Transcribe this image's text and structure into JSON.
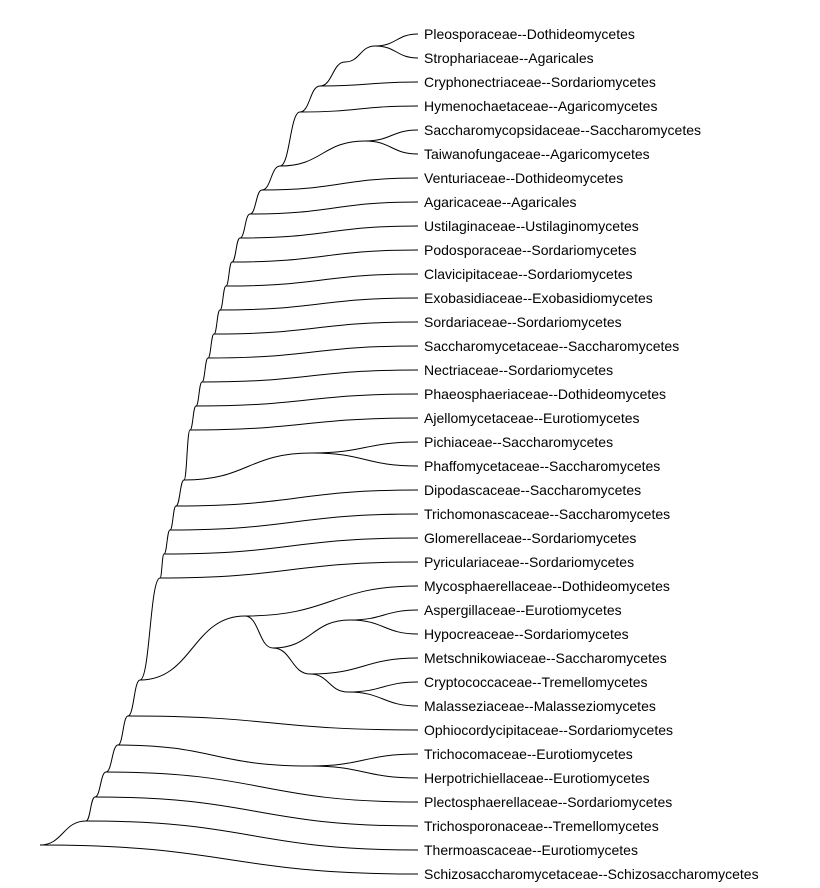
{
  "tree": {
    "leaves": [
      "Pleosporaceae--Dothideomycetes",
      "Strophariaceae--Agaricales",
      "Cryphonectriaceae--Sordariomycetes",
      "Hymenochaetaceae--Agaricomycetes",
      "Saccharomycopsidaceae--Saccharomycetes",
      "Taiwanofungaceae--Agaricomycetes",
      "Venturiaceae--Dothideomycetes",
      "Agaricaceae--Agaricales",
      "Ustilaginaceae--Ustilaginomycetes",
      "Podosporaceae--Sordariomycetes",
      "Clavicipitaceae--Sordariomycetes",
      "Exobasidiaceae--Exobasidiomycetes",
      "Sordariaceae--Sordariomycetes",
      "Saccharomycetaceae--Saccharomycetes",
      "Nectriaceae--Sordariomycetes",
      "Phaeosphaeriaceae--Dothideomycetes",
      "Ajellomycetaceae--Eurotiomycetes",
      "Pichiaceae--Saccharomycetes",
      "Phaffomycetaceae--Saccharomycetes",
      "Dipodascaceae--Saccharomycetes",
      "Trichomonascaceae--Saccharomycetes",
      "Glomerellaceae--Sordariomycetes",
      "Pyriculariaceae--Sordariomycetes",
      "Mycosphaerellaceae--Dothideomycetes",
      "Aspergillaceae--Eurotiomycetes",
      "Hypocreaceae--Sordariomycetes",
      "Metschnikowiaceae--Saccharomycetes",
      "Cryptococcaceae--Tremellomycetes",
      "Malasseziaceae--Malasseziomycetes",
      "Ophiocordycipitaceae--Sordariomycetes",
      "Trichocomaceae--Eurotiomycetes",
      "Herpotrichiellaceae--Eurotiomycetes",
      "Plectosphaerellaceae--Sordariomycetes",
      "Trichosporonaceae--Tremellomycetes",
      "Thermoascaceae--Eurotiomycetes",
      "Schizosaccharomycetaceae--Schizosaccharomycetes"
    ]
  }
}
